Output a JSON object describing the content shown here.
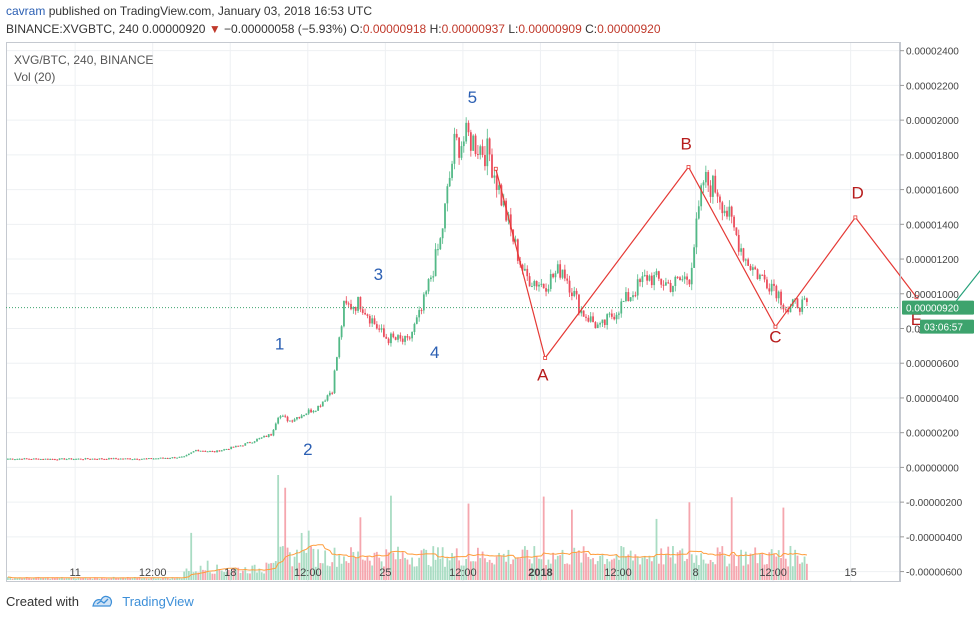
{
  "header": {
    "author": "cavram",
    "published_text": "published on TradingView.com, January 03, 2018 16:53 UTC",
    "symbol_line": "BINANCE:XVGBTC, 240",
    "last_price": "0.00000920",
    "change_arrow": "▼",
    "change": "−0.00000058 (−5.93%)",
    "ohlc": {
      "o_label": "O:",
      "o": "0.00000918",
      "h_label": "H:",
      "h": "0.00000937",
      "l_label": "L:",
      "l": "0.00000909",
      "c_label": "C:",
      "c": "0.00000920"
    }
  },
  "footer": {
    "created_with": "Created with",
    "brand": "TradingView"
  },
  "colors": {
    "up": "#53b987",
    "down": "#eb4d5c",
    "vol_up": "#a9dcc3",
    "vol_down": "#f5a6ae",
    "vol_ma": "#ff9d3c",
    "elliott_red": "#e53935",
    "elliott_label_blue": "#2b5fb3",
    "projection_green": "#26a17a",
    "price_line": "#3da36d",
    "grid": "#eef0f3"
  },
  "chart_data": {
    "type": "candlestick",
    "title": "XVG/BTC, 240, BINANCE",
    "indicator": "Vol (20)",
    "y_axis_labels": [
      "0.00002400",
      "0.00002200",
      "0.00002000",
      "0.00001800",
      "0.00001600",
      "0.00001400",
      "0.00001200",
      "0.00001000",
      "0.00000800",
      "0.00000600",
      "0.00000400",
      "0.00000200",
      "0.00000000",
      "-0.00000200",
      "-0.00000400",
      "-0.00000600"
    ],
    "ylim": [
      -6.6e-06,
      2.45e-05
    ],
    "x_axis_labels": [
      "11",
      "12:00",
      "18",
      "12:00",
      "25",
      "12:00",
      "2018",
      "12:00",
      "8",
      "12:00",
      "15"
    ],
    "current_price_label": "0.00000920",
    "countdown_label": "03:06:57",
    "partial_axis_label": "0",
    "price_anchors": [
      [
        0,
        5e-07
      ],
      [
        20,
        4.8e-07
      ],
      [
        40,
        5e-07
      ],
      [
        60,
        5e-07
      ],
      [
        75,
        6e-07
      ],
      [
        80,
        1e-06
      ],
      [
        88,
        9e-07
      ],
      [
        100,
        1.3e-06
      ],
      [
        112,
        1.9e-06
      ],
      [
        115,
        3e-06
      ],
      [
        120,
        2.7e-06
      ],
      [
        132,
        3.5e-06
      ],
      [
        138,
        4.5e-06
      ],
      [
        143,
        9.2e-06
      ],
      [
        150,
        9.5e-06
      ],
      [
        160,
        7.5e-06
      ],
      [
        170,
        7.2e-06
      ],
      [
        176,
        9e-06
      ],
      [
        184,
        1.3e-05
      ],
      [
        190,
        1.85e-05
      ],
      [
        196,
        1.9e-05
      ],
      [
        205,
        1.8e-05
      ],
      [
        213,
        1.4e-05
      ],
      [
        220,
        1.1e-05
      ],
      [
        228,
        1.05e-05
      ],
      [
        236,
        1.15e-05
      ],
      [
        244,
        9e-06
      ],
      [
        252,
        8e-06
      ],
      [
        262,
        9.5e-06
      ],
      [
        272,
        1.1e-05
      ],
      [
        282,
        1.05e-05
      ],
      [
        290,
        1.1e-05
      ],
      [
        296,
        1.65e-05
      ],
      [
        302,
        1.6e-05
      ],
      [
        308,
        1.4e-05
      ],
      [
        314,
        1.2e-05
      ],
      [
        320,
        1.1e-05
      ],
      [
        326,
        1.05e-05
      ],
      [
        332,
        9e-06
      ],
      [
        336,
        9.5e-06
      ],
      [
        340,
        9.2e-06
      ]
    ],
    "elliott_wave_labels": [
      {
        "label": "1",
        "x": 116,
        "y": 6.8e-06,
        "color": "blue"
      },
      {
        "label": "2",
        "x": 128,
        "y": 7e-07,
        "color": "blue"
      },
      {
        "label": "3",
        "x": 158,
        "y": 1.08e-05,
        "color": "blue"
      },
      {
        "label": "4",
        "x": 182,
        "y": 6.3e-06,
        "color": "blue"
      },
      {
        "label": "5",
        "x": 198,
        "y": 2.1e-05,
        "color": "blue"
      },
      {
        "label": "A",
        "x": 228,
        "y": 5e-06,
        "color": "red"
      },
      {
        "label": "B",
        "x": 289,
        "y": 1.83e-05,
        "color": "red"
      },
      {
        "label": "C",
        "x": 327,
        "y": 7.2e-06,
        "color": "red"
      },
      {
        "label": "D",
        "x": 362,
        "y": 1.55e-05,
        "color": "red"
      },
      {
        "label": "E",
        "x": 387,
        "y": 8.2e-06,
        "color": "red"
      }
    ],
    "abcde_path": [
      [
        208,
        1.72e-05
      ],
      [
        229,
        6.3e-06
      ],
      [
        290,
        1.73e-05
      ],
      [
        327,
        8.1e-06
      ],
      [
        361,
        1.44e-05
      ],
      [
        387,
        9.8e-06
      ]
    ],
    "projection_line": [
      [
        404,
        9.6e-06
      ],
      [
        483,
        2.31e-05
      ]
    ]
  }
}
